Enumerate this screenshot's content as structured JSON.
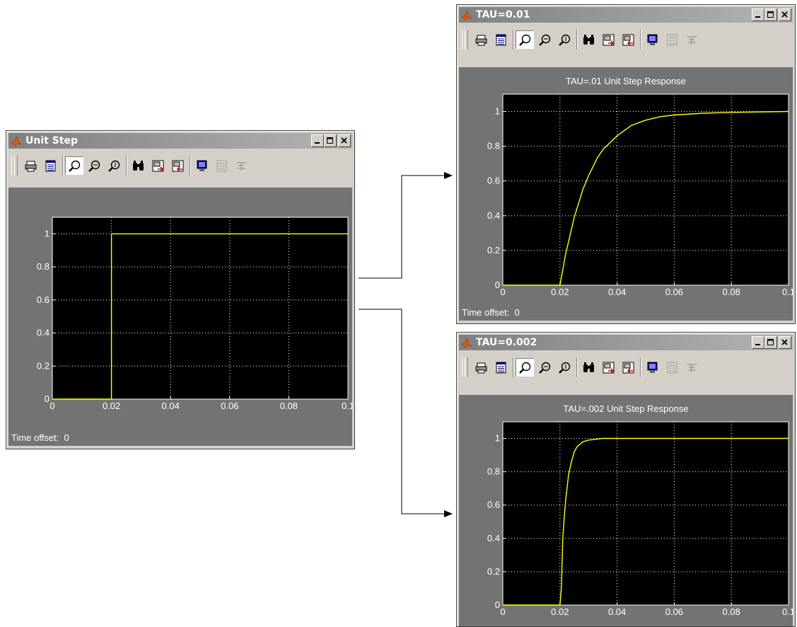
{
  "windows": [
    {
      "id": "unit-step",
      "title": "Unit Step",
      "plot_title": "",
      "time_offset_label": "Time offset:",
      "time_offset_value": "0"
    },
    {
      "id": "tau-01",
      "title": "TAU=0.01",
      "plot_title": "TAU=.01 Unit Step Response",
      "time_offset_label": "Time offset:",
      "time_offset_value": "0"
    },
    {
      "id": "tau-002",
      "title": "TAU=0.002",
      "plot_title": "TAU=.002 Unit Step Response",
      "time_offset_label": "",
      "time_offset_value": ""
    }
  ],
  "toolbar_icons": [
    "print-icon",
    "parameters-icon",
    "zoom-icon",
    "zoom-x-icon",
    "zoom-y-icon",
    "autoscale-icon",
    "save-axes-icon",
    "restore-axes-icon",
    "floating-scope-icon",
    "signal-selection-icon",
    "lock-axes-icon"
  ],
  "chart_data": [
    {
      "type": "line",
      "title": "",
      "xlim": [
        0,
        0.1
      ],
      "ylim": [
        0,
        1.1
      ],
      "xticks": [
        0,
        0.02,
        0.04,
        0.06,
        0.08,
        0.1
      ],
      "xtick_labels": [
        "0",
        "0.02",
        "0.04",
        "0.06",
        "0.08",
        "0.1"
      ],
      "yticks": [
        0,
        0.2,
        0.4,
        0.6,
        0.8,
        1
      ],
      "ytick_labels": [
        "0",
        "0.2",
        "0.4",
        "0.6",
        "0.8",
        "1"
      ],
      "grid": true,
      "series_color": "#ffff00",
      "series": [
        {
          "x": [
            0,
            0.02,
            0.02,
            0.1
          ],
          "y": [
            0,
            0,
            1,
            1
          ]
        }
      ]
    },
    {
      "type": "line",
      "title": "TAU=.01 Unit Step Response",
      "xlim": [
        0,
        0.1
      ],
      "ylim": [
        0,
        1.1
      ],
      "xticks": [
        0,
        0.02,
        0.04,
        0.06,
        0.08,
        0.1
      ],
      "xtick_labels": [
        "0",
        "0.02",
        "0.04",
        "0.06",
        "0.08",
        "0.1"
      ],
      "yticks": [
        0,
        0.2,
        0.4,
        0.6,
        0.8,
        1
      ],
      "ytick_labels": [
        "0",
        "0.2",
        "0.4",
        "0.6",
        "0.8",
        "1"
      ],
      "grid": true,
      "series_color": "#ffff00",
      "series": [
        {
          "x": [
            0,
            0.02,
            0.022,
            0.025,
            0.028,
            0.03,
            0.033,
            0.035,
            0.04,
            0.045,
            0.05,
            0.055,
            0.06,
            0.07,
            0.08,
            0.1
          ],
          "y": [
            0,
            0,
            0.18,
            0.39,
            0.55,
            0.63,
            0.73,
            0.78,
            0.86,
            0.92,
            0.95,
            0.97,
            0.98,
            0.99,
            0.995,
            1
          ]
        }
      ]
    },
    {
      "type": "line",
      "title": "TAU=.002 Unit Step Response",
      "xlim": [
        0,
        0.1
      ],
      "ylim": [
        0,
        1.1
      ],
      "xticks": [
        0,
        0.02,
        0.04,
        0.06,
        0.08,
        0.1
      ],
      "xtick_labels": [
        "0",
        "0.02",
        "0.04",
        "0.06",
        "0.08",
        "0.1"
      ],
      "yticks": [
        0,
        0.2,
        0.4,
        0.6,
        0.8,
        1
      ],
      "ytick_labels": [
        "0",
        "0.2",
        "0.4",
        "0.6",
        "0.8",
        "1"
      ],
      "grid": true,
      "series_color": "#ffff00",
      "series": [
        {
          "x": [
            0,
            0.02,
            0.0205,
            0.021,
            0.0215,
            0.022,
            0.023,
            0.024,
            0.025,
            0.026,
            0.028,
            0.03,
            0.035,
            0.1
          ],
          "y": [
            0,
            0,
            0.1,
            0.4,
            0.53,
            0.63,
            0.78,
            0.86,
            0.92,
            0.95,
            0.98,
            0.99,
            1,
            1
          ]
        }
      ]
    }
  ]
}
